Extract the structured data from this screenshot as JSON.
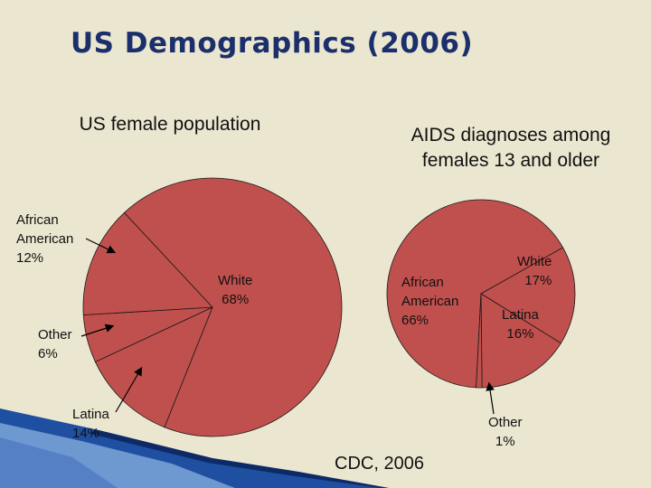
{
  "slide_title": "US Demographics (2006)",
  "source": "CDC, 2006",
  "colors": {
    "background": "#ebe6cf",
    "slice_fill": "#c0504d",
    "title": "#1a2f6b",
    "accent_band": "#1f4fa0"
  },
  "chart_data": [
    {
      "type": "pie",
      "title": "US female population",
      "slices": [
        {
          "label": "White",
          "value": 68,
          "text": "White\n68%"
        },
        {
          "label": "African American",
          "value": 12,
          "text": "African\nAmerican\n12%"
        },
        {
          "label": "Other",
          "value": 6,
          "text": "Other\n6%"
        },
        {
          "label": "Latina",
          "value": 14,
          "text": "Latina\n14%"
        }
      ]
    },
    {
      "type": "pie",
      "title": "AIDS diagnoses among females 13 and older",
      "title_lines": [
        "AIDS diagnoses among",
        "females 13 and older"
      ],
      "slices": [
        {
          "label": "African American",
          "value": 66,
          "text": "African\nAmerican\n66%"
        },
        {
          "label": "White",
          "value": 17,
          "text": "White\n17%"
        },
        {
          "label": "Latina",
          "value": 16,
          "text": "Latina\n16%"
        },
        {
          "label": "Other",
          "value": 1,
          "text": "Other\n1%"
        }
      ]
    }
  ]
}
